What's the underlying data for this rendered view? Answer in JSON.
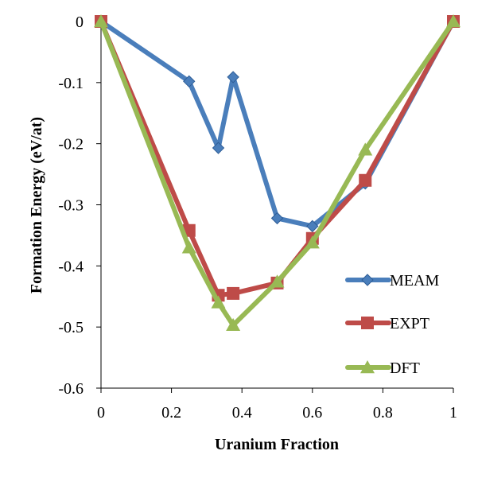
{
  "chart_data": {
    "type": "line",
    "title": "",
    "xlabel": "Uranium Fraction",
    "ylabel": "Formation Energy (eV/at)",
    "xlim": [
      0,
      1
    ],
    "ylim": [
      -0.6,
      0
    ],
    "x_ticks": [
      "0",
      "0.2",
      "0.4",
      "0.6",
      "0.8",
      "1"
    ],
    "x_tick_values": [
      0,
      0.2,
      0.4,
      0.6,
      0.8,
      1
    ],
    "y_ticks": [
      "0",
      "-0.1",
      "-0.2",
      "-0.3",
      "-0.4",
      "-0.5",
      "-0.6"
    ],
    "y_tick_values": [
      0,
      -0.1,
      -0.2,
      -0.3,
      -0.4,
      -0.5,
      -0.6
    ],
    "grid": false,
    "legend_position": "bottom-right",
    "series": [
      {
        "name": "MEAM",
        "color": "#4a7ebb",
        "marker": "diamond",
        "x": [
          0,
          0.25,
          0.333,
          0.375,
          0.5,
          0.6,
          0.75,
          1
        ],
        "y": [
          0,
          -0.098,
          -0.207,
          -0.091,
          -0.322,
          -0.335,
          -0.265,
          0
        ]
      },
      {
        "name": "EXPT",
        "color": "#be4b48",
        "marker": "square",
        "x": [
          0,
          0.25,
          0.333,
          0.375,
          0.5,
          0.6,
          0.75,
          1
        ],
        "y": [
          0,
          -0.342,
          -0.448,
          -0.445,
          -0.428,
          -0.355,
          -0.26,
          0
        ]
      },
      {
        "name": "DFT",
        "color": "#98b954",
        "marker": "triangle",
        "x": [
          0,
          0.25,
          0.333,
          0.375,
          0.5,
          0.6,
          0.75,
          1
        ],
        "y": [
          0,
          -0.37,
          -0.46,
          -0.497,
          -0.426,
          -0.362,
          -0.21,
          0
        ]
      }
    ]
  }
}
